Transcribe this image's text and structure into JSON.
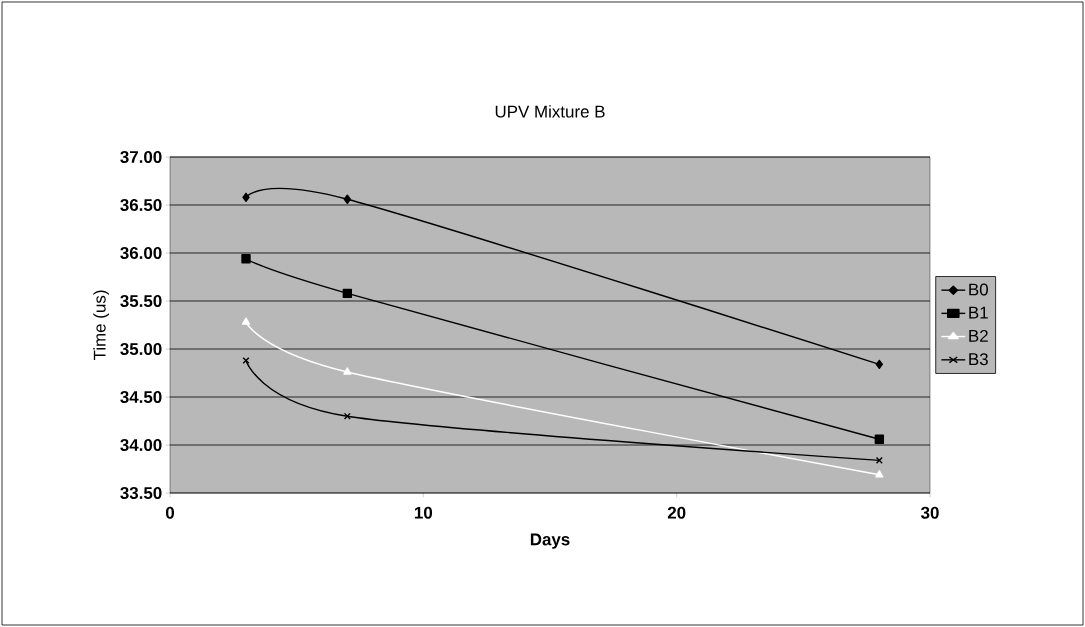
{
  "chart_data": {
    "type": "line",
    "title": "UPV Mixture B",
    "xlabel": "Days",
    "ylabel": "Time (us)",
    "x": [
      3,
      7,
      28
    ],
    "series": [
      {
        "name": "B0",
        "color": "#000000",
        "marker": "diamond",
        "values": [
          36.58,
          36.56,
          34.84
        ]
      },
      {
        "name": "B1",
        "color": "#000000",
        "marker": "square",
        "values": [
          35.94,
          35.58,
          34.06
        ]
      },
      {
        "name": "B2",
        "color": "#ffffff",
        "marker": "triangle",
        "values": [
          35.28,
          34.76,
          33.69
        ]
      },
      {
        "name": "B3",
        "color": "#000000",
        "marker": "cross",
        "values": [
          34.88,
          34.3,
          33.84
        ]
      }
    ],
    "xlim": [
      0,
      30
    ],
    "xticks": [
      0,
      10,
      20,
      30
    ],
    "ylim": [
      33.5,
      37
    ],
    "yticks": [
      {
        "value": 33.5,
        "label": "33.50"
      },
      {
        "value": 34,
        "label": "34.00"
      },
      {
        "value": 34.5,
        "label": "34.50"
      },
      {
        "value": 35,
        "label": "35.00"
      },
      {
        "value": 35.5,
        "label": "35.50"
      },
      {
        "value": 36,
        "label": "36.00"
      },
      {
        "value": 36.5,
        "label": "36.50"
      },
      {
        "value": 37,
        "label": "37.00"
      }
    ],
    "grid": "y",
    "legend": "right",
    "line_style": "solid"
  }
}
